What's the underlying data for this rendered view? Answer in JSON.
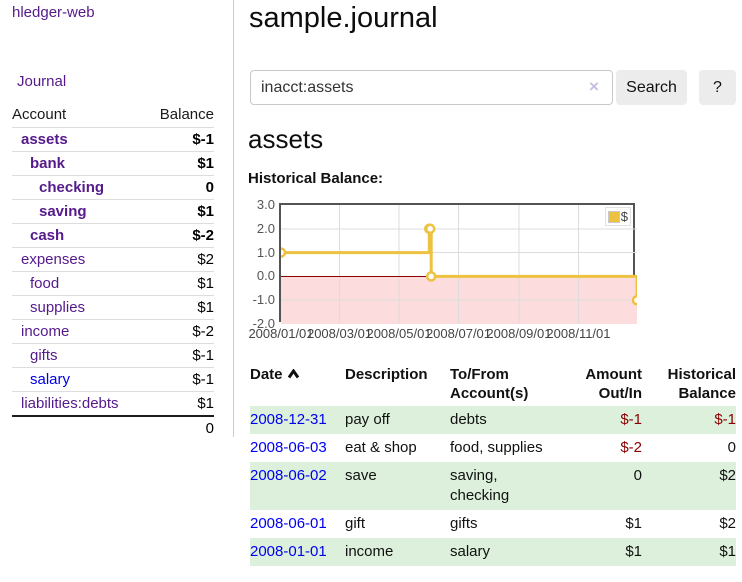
{
  "app": {
    "title": "hledger-web",
    "nav_journal": "Journal"
  },
  "sidebar": {
    "header": {
      "account": "Account",
      "balance": "Balance"
    },
    "accounts": [
      {
        "name": "assets",
        "indent": 1,
        "balance": "$-1",
        "bold": true,
        "neg": "strong"
      },
      {
        "name": "bank",
        "indent": 2,
        "balance": "$1",
        "bold": true,
        "neg": "none"
      },
      {
        "name": "checking",
        "indent": 3,
        "balance": "0",
        "bold": true,
        "neg": "none"
      },
      {
        "name": "saving",
        "indent": 3,
        "balance": "$1",
        "bold": true,
        "neg": "none"
      },
      {
        "name": "cash",
        "indent": 2,
        "balance": "$-2",
        "bold": true,
        "neg": "strong"
      },
      {
        "name": "expenses",
        "indent": 1,
        "balance": "$2",
        "bold": false,
        "neg": "none"
      },
      {
        "name": "food",
        "indent": 2,
        "balance": "$1",
        "bold": false,
        "neg": "none"
      },
      {
        "name": "supplies",
        "indent": 2,
        "balance": "$1",
        "bold": false,
        "neg": "none"
      },
      {
        "name": "income",
        "indent": 1,
        "balance": "$-2",
        "bold": false,
        "neg": "muted"
      },
      {
        "name": "gifts",
        "indent": 2,
        "balance": "$-1",
        "bold": false,
        "neg": "muted"
      },
      {
        "name": "salary",
        "indent": 2,
        "balance": "$-1",
        "bold": false,
        "neg": "muted",
        "link_style": "unvisited"
      },
      {
        "name": "liabilities:debts",
        "indent": 1,
        "balance": "$1",
        "bold": false,
        "neg": "none"
      }
    ],
    "total": "0"
  },
  "header": {
    "title": "sample.journal"
  },
  "search": {
    "value": "inacct:assets",
    "clear_icon": "×",
    "button": "Search",
    "help_button": "?"
  },
  "account_page": {
    "heading": "assets",
    "chart_label": "Historical Balance:"
  },
  "chart_data": {
    "type": "line",
    "style": "step",
    "title": "Historical Balance",
    "legend": "$",
    "legend_position": "top-right",
    "grid": true,
    "x_range": [
      "2008-01-01",
      "2008-12-31"
    ],
    "ylim": [
      -2,
      3
    ],
    "y_ticks": [
      3.0,
      2.0,
      1.0,
      0.0,
      -1.0,
      -2.0
    ],
    "x_ticks": [
      "2008/01/01",
      "2008/03/01",
      "2008/05/01",
      "2008/07/01",
      "2008/09/01",
      "2008/11/01"
    ],
    "series": [
      {
        "name": "$",
        "color": "#edc240",
        "points": [
          [
            "2008-01-01",
            1
          ],
          [
            "2008-06-01",
            2
          ],
          [
            "2008-06-02",
            2
          ],
          [
            "2008-06-03",
            0
          ],
          [
            "2008-12-31",
            -1
          ]
        ]
      }
    ],
    "negative_region_color": "#fcdcdc",
    "zero_line_color": "#8b0000"
  },
  "register": {
    "columns": {
      "date": "Date",
      "description": "Description",
      "accounts": "To/From Account(s)",
      "amount": "Amount Out/In",
      "balance": "Historical Balance"
    },
    "rows": [
      {
        "date": "2008-12-31",
        "description": "pay off",
        "accounts": "debts",
        "amount": "$-1",
        "balance": "$-1"
      },
      {
        "date": "2008-06-03",
        "description": "eat & shop",
        "accounts": "food, supplies",
        "amount": "$-2",
        "balance": "0"
      },
      {
        "date": "2008-06-02",
        "description": "save",
        "accounts": "saving, checking",
        "amount": "0",
        "balance": "$2"
      },
      {
        "date": "2008-06-01",
        "description": "gift",
        "accounts": "gifts",
        "amount": "$1",
        "balance": "$2"
      },
      {
        "date": "2008-01-01",
        "description": "income",
        "accounts": "salary",
        "amount": "$1",
        "balance": "$1"
      }
    ]
  }
}
